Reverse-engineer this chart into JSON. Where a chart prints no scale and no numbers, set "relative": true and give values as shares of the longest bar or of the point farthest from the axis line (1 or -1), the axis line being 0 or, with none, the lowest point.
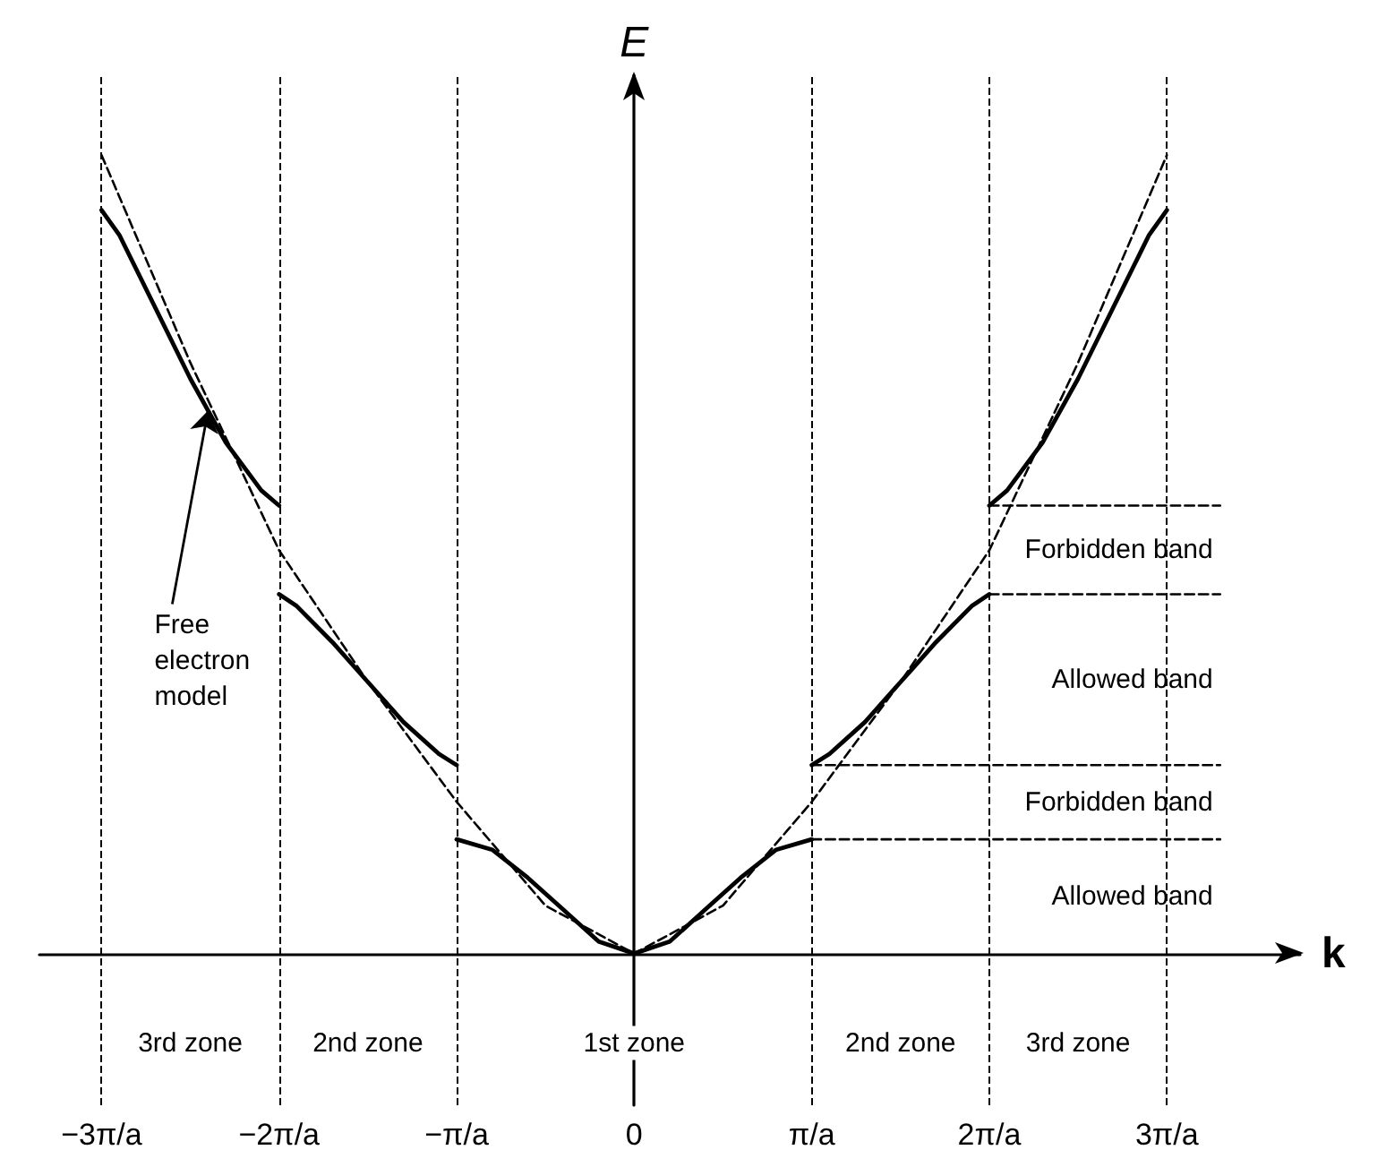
{
  "chart_data": {
    "type": "line",
    "relative": true,
    "xlabel": "k",
    "ylabel": "E",
    "marker": "none",
    "line_style": "solid",
    "grid": false,
    "xlim": [
      -3.35,
      3.75
    ],
    "xticks": [
      {
        "value": -3,
        "label": "−3π/a"
      },
      {
        "value": -2,
        "label": "−2π/a"
      },
      {
        "value": -1,
        "label": "−π/a"
      },
      0,
      {
        "value": 1,
        "label": "π/a"
      },
      {
        "value": 2,
        "label": "2π/a"
      },
      {
        "value": 3,
        "label": "3π/a"
      }
    ],
    "series": [
      {
        "color": "#000000",
        "line_style": "dashed",
        "x": [
          -3,
          -2.5,
          -2,
          -1.5,
          -1,
          -0.5,
          0,
          0.5,
          1,
          1.5,
          2,
          2.5,
          3
        ],
        "values": [
          1,
          0.74,
          0.505,
          0.34,
          0.19,
          0.06,
          0,
          0.06,
          0.19,
          0.34,
          0.505,
          0.74,
          1
        ]
      },
      {
        "color": "#000000",
        "x": [
          -1,
          -0.8,
          -0.6,
          -0.4,
          -0.2,
          0,
          0.2,
          0.4,
          0.6,
          0.8,
          1
        ],
        "values": [
          0.143,
          0.13,
          0.095,
          0.055,
          0.015,
          0,
          0.015,
          0.055,
          0.095,
          0.13,
          0.143
        ]
      },
      {
        "color": "#000000",
        "x": [
          1,
          1.1,
          1.3,
          1.5,
          1.7,
          1.9,
          2
        ],
        "values": [
          0.236,
          0.25,
          0.29,
          0.34,
          0.39,
          0.435,
          0.45
        ]
      },
      {
        "color": "#000000",
        "x": [
          -2,
          -1.9,
          -1.7,
          -1.5,
          -1.3,
          -1.1,
          -1
        ],
        "values": [
          0.45,
          0.435,
          0.39,
          0.34,
          0.29,
          0.25,
          0.236
        ]
      },
      {
        "color": "#000000",
        "x": [
          2,
          2.1,
          2.3,
          2.5,
          2.7,
          2.9,
          3
        ],
        "values": [
          0.561,
          0.58,
          0.64,
          0.72,
          0.81,
          0.9,
          0.931
        ]
      },
      {
        "color": "#000000",
        "x": [
          -3,
          -2.9,
          -2.7,
          -2.5,
          -2.3,
          -2.1,
          -2
        ],
        "values": [
          0.931,
          0.9,
          0.81,
          0.72,
          0.64,
          0.58,
          0.561
        ]
      },
      {
        "color": "#000000",
        "line_style": "dashed",
        "x": [
          1,
          3.3
        ],
        "values": [
          0.143,
          0.143
        ]
      },
      {
        "color": "#000000",
        "line_style": "dashed",
        "x": [
          1,
          3.3
        ],
        "values": [
          0.236,
          0.236
        ]
      },
      {
        "color": "#000000",
        "line_style": "dashed",
        "x": [
          2,
          3.3
        ],
        "values": [
          0.45,
          0.45
        ]
      },
      {
        "color": "#000000",
        "line_style": "dashed",
        "x": [
          2,
          3.3
        ],
        "values": [
          0.561,
          0.561
        ]
      }
    ],
    "ref_lines": [
      {
        "axis": "x",
        "value": -3,
        "color": "#000000",
        "line_style": "dashed"
      },
      {
        "axis": "x",
        "value": -2,
        "color": "#000000",
        "line_style": "dashed"
      },
      {
        "axis": "x",
        "value": -1,
        "color": "#000000",
        "line_style": "dashed"
      },
      {
        "axis": "x",
        "value": 1,
        "color": "#000000",
        "line_style": "dashed"
      },
      {
        "axis": "x",
        "value": 2,
        "color": "#000000",
        "line_style": "dashed"
      },
      {
        "axis": "x",
        "value": 3,
        "color": "#000000",
        "line_style": "dashed"
      }
    ],
    "annotations": [
      {
        "text": "Free electron model",
        "x": -2.4,
        "y": 0.68
      },
      "Forbidden band",
      "Allowed band",
      "Forbidden band",
      "Allowed band",
      "3rd zone",
      "2nd zone",
      "1st zone",
      "2nd zone",
      "3rd zone"
    ]
  }
}
